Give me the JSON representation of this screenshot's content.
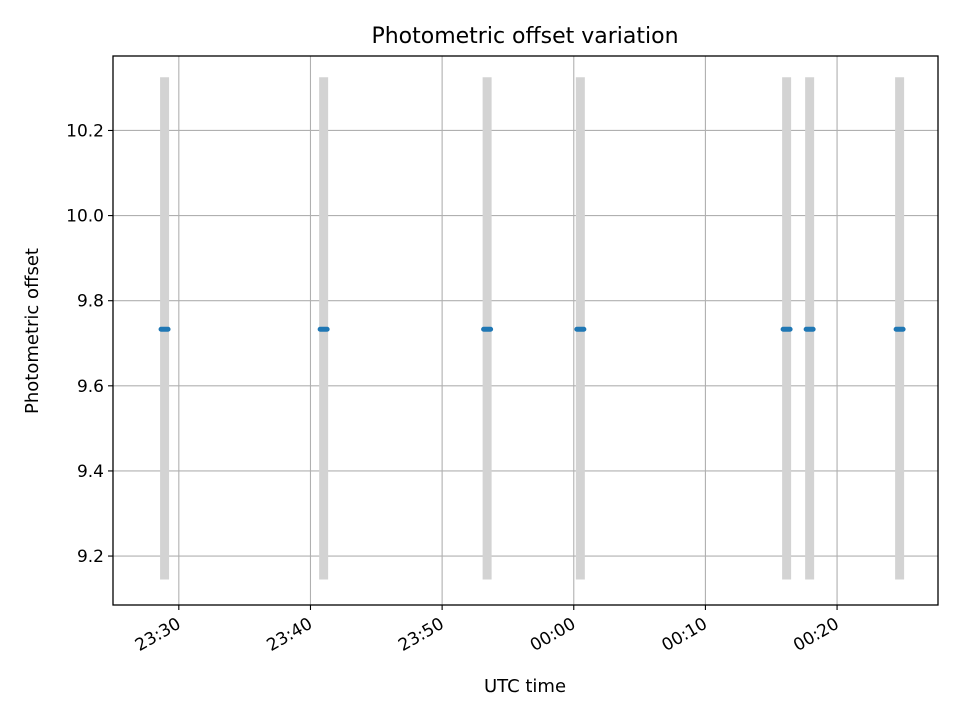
{
  "chart_data": {
    "type": "scatter",
    "title": "Photometric offset variation",
    "xlabel": "UTC time",
    "ylabel": "Photometric offset",
    "xlim": [
      "23:25:00",
      "00:27:40"
    ],
    "ylim": [
      9.085,
      10.375
    ],
    "x_ticks": [
      "23:30",
      "23:40",
      "23:50",
      "00:00",
      "00:10",
      "00:20"
    ],
    "y_ticks": [
      "9.2",
      "9.4",
      "9.6",
      "9.8",
      "10.0",
      "10.2"
    ],
    "grid": true,
    "points": [
      {
        "x": "23:28:55",
        "y": 9.733,
        "y_low": 9.145,
        "y_high": 10.325
      },
      {
        "x": "23:41:00",
        "y": 9.733,
        "y_low": 9.145,
        "y_high": 10.325
      },
      {
        "x": "23:53:25",
        "y": 9.733,
        "y_low": 9.145,
        "y_high": 10.325
      },
      {
        "x": "00:00:30",
        "y": 9.733,
        "y_low": 9.145,
        "y_high": 10.325
      },
      {
        "x": "00:16:10",
        "y": 9.733,
        "y_low": 9.145,
        "y_high": 10.325
      },
      {
        "x": "00:17:55",
        "y": 9.733,
        "y_low": 9.145,
        "y_high": 10.325
      },
      {
        "x": "00:24:45",
        "y": 9.733,
        "y_low": 9.145,
        "y_high": 10.325
      }
    ],
    "colors": {
      "marker": "#1f77b4",
      "errorbar": "#d3d3d3",
      "grid": "#b0b0b0"
    }
  }
}
